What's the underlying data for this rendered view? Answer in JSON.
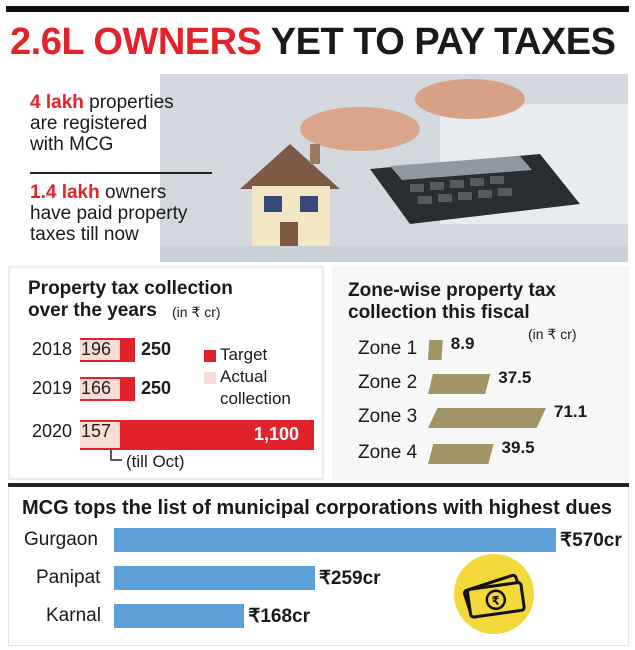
{
  "headline": {
    "red_part": "2.6L OWNERS",
    "rest": " YET TO PAY TAXES"
  },
  "facts": [
    {
      "highlight": "4 lakh",
      "text_line1": " properties",
      "text_line2": "are registered",
      "text_line3": "with MCG"
    },
    {
      "highlight": "1.4 lakh",
      "text_line1": " owners",
      "text_line2": "have paid property",
      "text_line3": "taxes till now"
    }
  ],
  "colors": {
    "red": "#e3232b",
    "actual": "#f6dcd4",
    "zone": "#a19467",
    "city": "#5da1d8"
  },
  "chart_data": [
    {
      "type": "bar",
      "title": "Property tax collection over the years",
      "units": "(in ₹ cr)",
      "categories": [
        "2018",
        "2019",
        "2020"
      ],
      "series": [
        {
          "name": "Target",
          "values": [
            250,
            250,
            1100
          ],
          "labels": [
            "250",
            "250",
            "1,100"
          ]
        },
        {
          "name": "Actual collection",
          "values": [
            196,
            166,
            157
          ],
          "labels": [
            "196",
            "166",
            "157"
          ]
        }
      ],
      "annotation": "(till Oct)",
      "legend": [
        "Target",
        "Actual",
        "collection"
      ]
    },
    {
      "type": "bar",
      "title": "Zone-wise property tax collection this fiscal",
      "units": "(in ₹ cr)",
      "categories": [
        "Zone 1",
        "Zone 2",
        "Zone 3",
        "Zone 4"
      ],
      "values": [
        8.9,
        37.5,
        71.1,
        39.5
      ],
      "labels": [
        "8.9",
        "37.5",
        "71.1",
        "39.5"
      ]
    },
    {
      "type": "bar",
      "title": "MCG tops the list of municipal corporations with highest dues",
      "categories": [
        "Gurgaon",
        "Panipat",
        "Karnal"
      ],
      "values": [
        570,
        259,
        168
      ],
      "labels": [
        "₹570cr",
        "₹259cr",
        "₹168cr"
      ]
    }
  ]
}
